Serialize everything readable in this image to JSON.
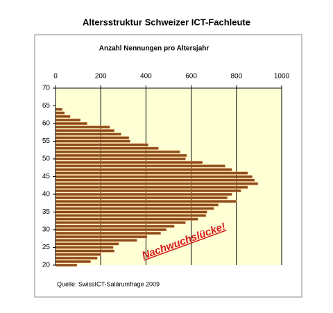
{
  "chart_data": {
    "type": "hbar",
    "title": "Altersstruktur Schweizer ICT-Fachleute",
    "subtitle": "Anzahl Nennungen pro Altersjahr",
    "annotation": "Nachwuchslücke!",
    "source": "Quelle: SwissICT-Salärumfrage 2009",
    "categories": [
      20,
      21,
      22,
      23,
      24,
      25,
      26,
      27,
      28,
      29,
      30,
      31,
      32,
      33,
      34,
      35,
      36,
      37,
      38,
      39,
      40,
      41,
      42,
      43,
      44,
      45,
      46,
      47,
      48,
      49,
      50,
      51,
      52,
      53,
      54,
      55,
      56,
      57,
      58,
      59,
      60,
      61,
      62,
      63,
      64
    ],
    "values": [
      95,
      155,
      185,
      200,
      260,
      255,
      280,
      360,
      405,
      465,
      490,
      525,
      575,
      630,
      665,
      670,
      700,
      720,
      800,
      760,
      780,
      820,
      850,
      895,
      880,
      870,
      850,
      780,
      750,
      650,
      575,
      580,
      550,
      455,
      410,
      330,
      325,
      290,
      260,
      240,
      140,
      110,
      65,
      40,
      30
    ],
    "color": "#8b4a1c",
    "xlim": [
      0,
      1000
    ],
    "xticks": [
      0,
      200,
      400,
      600,
      800,
      1000
    ],
    "ylim": [
      20,
      70
    ],
    "yticks": [
      20,
      25,
      30,
      35,
      40,
      45,
      50,
      55,
      60,
      65,
      70
    ],
    "grid": true
  }
}
